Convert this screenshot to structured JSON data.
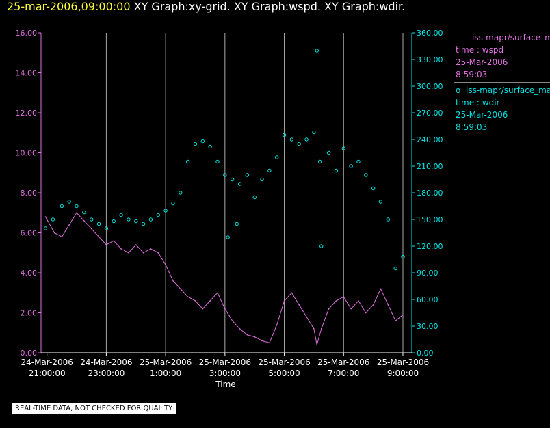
{
  "title": {
    "date": "25-mar-2006,09:00:00",
    "rest": "XY Graph:xy-grid.  XY Graph:wspd.  XY Graph:wdir."
  },
  "legend": [
    {
      "marker": "——",
      "name": "iss-mapr/surface_mapr",
      "line2": "time : wspd",
      "line3": "25-Mar-2006",
      "line4": "8:59:03"
    },
    {
      "marker": "o",
      "name": "iss-mapr/surface_mapr",
      "line2": "time : wdir",
      "line3": "25-Mar-2006",
      "line4": "8:59:03"
    }
  ],
  "note": "REAL-TIME DATA, NOT CHECKED FOR QUALITY",
  "colors": {
    "wspd": "#e070e0",
    "wdir": "#00e8e8",
    "grid": "#aaaaaa",
    "axis": "#ffffff"
  },
  "chart_data": {
    "type": "line",
    "title": "XY Graph:xy-grid.  XY Graph:wspd.  XY Graph:wdir.",
    "xlabel": "Time",
    "x_range_hours": [
      -0.2,
      12.3
    ],
    "x_ticks": [
      {
        "h": 0,
        "l1": "24-Mar-2006",
        "l2": "21:00:00"
      },
      {
        "h": 2,
        "l1": "24-Mar-2006",
        "l2": "23:00:00"
      },
      {
        "h": 4,
        "l1": "25-Mar-2006",
        "l2": "1:00:00"
      },
      {
        "h": 6,
        "l1": "25-Mar-2006",
        "l2": "3:00:00"
      },
      {
        "h": 8,
        "l1": "25-Mar-2006",
        "l2": "5:00:00"
      },
      {
        "h": 10,
        "l1": "25-Mar-2006",
        "l2": "7:00:00"
      },
      {
        "h": 12,
        "l1": "25-Mar-2006",
        "l2": "9:00:00"
      }
    ],
    "y_left": {
      "label": "wspd",
      "range": [
        0,
        16
      ],
      "ticks": [
        "0.00",
        "2.00",
        "4.00",
        "6.00",
        "8.00",
        "10.00",
        "12.00",
        "14.00",
        "16.00"
      ]
    },
    "y_right": {
      "label": "wdir",
      "range": [
        0,
        360
      ],
      "ticks": [
        "0.00",
        "30.00",
        "60.00",
        "90.00",
        "120.00",
        "150.00",
        "180.00",
        "210.00",
        "240.00",
        "270.00",
        "300.00",
        "330.00",
        "360.00"
      ]
    },
    "series": [
      {
        "name": "wspd",
        "style": "line",
        "axis": "left",
        "x": [
          -0.05,
          0.25,
          0.5,
          0.75,
          1.0,
          1.25,
          1.5,
          1.75,
          2.0,
          2.25,
          2.5,
          2.75,
          3.0,
          3.25,
          3.5,
          3.75,
          4.0,
          4.25,
          4.5,
          4.75,
          5.0,
          5.25,
          5.5,
          5.75,
          6.0,
          6.25,
          6.5,
          6.75,
          7.0,
          7.25,
          7.5,
          7.75,
          8.0,
          8.25,
          8.5,
          8.75,
          9.0,
          9.1,
          9.25,
          9.5,
          9.75,
          10.0,
          10.25,
          10.5,
          10.75,
          11.0,
          11.25,
          11.5,
          11.75,
          12.0
        ],
        "values": [
          6.8,
          6.0,
          5.8,
          6.4,
          7.0,
          6.6,
          6.2,
          5.8,
          5.4,
          5.6,
          5.2,
          5.0,
          5.4,
          5.0,
          5.2,
          5.0,
          4.4,
          3.6,
          3.2,
          2.8,
          2.6,
          2.2,
          2.6,
          3.0,
          2.2,
          1.6,
          1.2,
          0.9,
          0.8,
          0.6,
          0.5,
          1.4,
          2.6,
          3.0,
          2.4,
          1.8,
          1.2,
          0.4,
          1.2,
          2.2,
          2.6,
          2.8,
          2.2,
          2.6,
          2.0,
          2.4,
          3.2,
          2.4,
          1.6,
          1.9
        ]
      },
      {
        "name": "wdir",
        "style": "scatter",
        "axis": "right",
        "x": [
          -0.05,
          0.2,
          0.5,
          0.75,
          1.0,
          1.25,
          1.5,
          1.75,
          2.0,
          2.25,
          2.5,
          2.75,
          3.0,
          3.25,
          3.5,
          3.75,
          4.0,
          4.25,
          4.5,
          4.75,
          5.0,
          5.25,
          5.5,
          5.75,
          6.0,
          6.1,
          6.25,
          6.4,
          6.5,
          6.75,
          7.0,
          7.25,
          7.5,
          7.75,
          8.0,
          8.25,
          8.5,
          8.75,
          9.0,
          9.1,
          9.2,
          9.25,
          9.5,
          9.75,
          10.0,
          10.25,
          10.5,
          10.75,
          11.0,
          11.25,
          11.5,
          11.75,
          12.0
        ],
        "values": [
          140,
          150,
          165,
          170,
          165,
          158,
          150,
          145,
          140,
          148,
          155,
          150,
          148,
          145,
          150,
          155,
          160,
          168,
          180,
          215,
          235,
          238,
          232,
          215,
          200,
          130,
          195,
          145,
          190,
          200,
          175,
          195,
          205,
          220,
          245,
          240,
          235,
          240,
          248,
          340,
          215,
          120,
          225,
          205,
          230,
          210,
          215,
          200,
          185,
          170,
          150,
          95,
          108
        ]
      }
    ]
  }
}
